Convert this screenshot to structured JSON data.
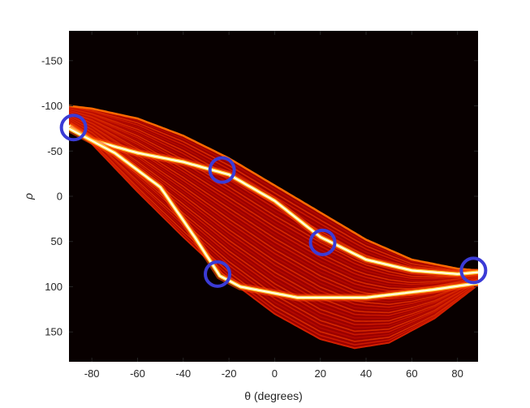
{
  "chart_data": {
    "type": "heatmap",
    "title": "",
    "xlabel": "θ (degrees)",
    "ylabel": "ρ",
    "xlim": [
      -90,
      89
    ],
    "ylim": [
      -183,
      183
    ],
    "y_direction": "reversed",
    "grid": false,
    "colormap": "hot",
    "background_color": "#080000",
    "xticks": [
      -80,
      -60,
      -40,
      -20,
      0,
      20,
      40,
      60,
      80
    ],
    "yticks": [
      -150,
      -100,
      -50,
      0,
      50,
      100,
      150
    ],
    "band": {
      "upper_edge": [
        {
          "theta": -90,
          "rho": -100
        },
        {
          "theta": -80,
          "rho": -97
        },
        {
          "theta": -60,
          "rho": -86
        },
        {
          "theta": -40,
          "rho": -67
        },
        {
          "theta": -20,
          "rho": -42
        },
        {
          "theta": 0,
          "rho": -12
        },
        {
          "theta": 20,
          "rho": 18
        },
        {
          "theta": 40,
          "rho": 48
        },
        {
          "theta": 60,
          "rho": 70
        },
        {
          "theta": 80,
          "rho": 80
        },
        {
          "theta": 89,
          "rho": 82
        }
      ],
      "lower_edge": [
        {
          "theta": -90,
          "rho": -78
        },
        {
          "theta": -80,
          "rho": -58
        },
        {
          "theta": -60,
          "rho": -5
        },
        {
          "theta": -40,
          "rho": 45
        },
        {
          "theta": -20,
          "rho": 92
        },
        {
          "theta": 0,
          "rho": 130
        },
        {
          "theta": 20,
          "rho": 158
        },
        {
          "theta": 35,
          "rho": 168
        },
        {
          "theta": 50,
          "rho": 162
        },
        {
          "theta": 70,
          "rho": 135
        },
        {
          "theta": 89,
          "rho": 98
        }
      ]
    },
    "bright_curves": [
      {
        "name": "",
        "points": [
          {
            "theta": -90,
            "rho": -78
          },
          {
            "theta": -80,
            "rho": -62
          },
          {
            "theta": -60,
            "rho": -48
          },
          {
            "theta": -40,
            "rho": -38
          },
          {
            "theta": -20,
            "rho": -24
          },
          {
            "theta": 0,
            "rho": 5
          },
          {
            "theta": 20,
            "rho": 45
          },
          {
            "theta": 40,
            "rho": 70
          },
          {
            "theta": 60,
            "rho": 82
          },
          {
            "theta": 80,
            "rho": 86
          },
          {
            "theta": 89,
            "rho": 84
          }
        ]
      },
      {
        "name": "",
        "points": [
          {
            "theta": -90,
            "rho": -75
          },
          {
            "theta": -70,
            "rho": -48
          },
          {
            "theta": -50,
            "rho": -10
          },
          {
            "theta": -35,
            "rho": 45
          },
          {
            "theta": -24,
            "rho": 88
          },
          {
            "theta": -15,
            "rho": 100
          },
          {
            "theta": 10,
            "rho": 112
          },
          {
            "theta": 40,
            "rho": 112
          },
          {
            "theta": 70,
            "rho": 103
          },
          {
            "theta": 89,
            "rho": 96
          }
        ]
      }
    ],
    "highlighted_peaks": [
      {
        "theta": -88,
        "rho": -76
      },
      {
        "theta": -23,
        "rho": -29
      },
      {
        "theta": 21,
        "rho": 51
      },
      {
        "theta": -25,
        "rho": 86
      },
      {
        "theta": 87,
        "rho": 82
      }
    ],
    "marker_color": "#3b3bd6"
  }
}
